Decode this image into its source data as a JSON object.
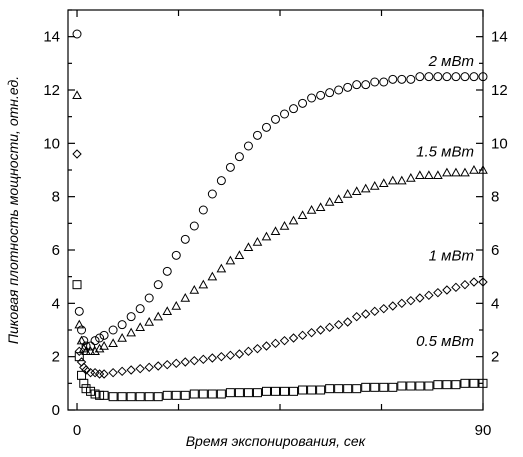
{
  "chart_data": {
    "type": "scatter",
    "xlabel": "Время экспонирования, сек",
    "ylabel": "Пиковая плотность мощности, отн.ед.",
    "xlim": [
      -2,
      90
    ],
    "ylim": [
      0,
      15
    ],
    "x_ticks": [
      0,
      90
    ],
    "y_ticks": [
      0,
      2,
      4,
      6,
      8,
      10,
      12,
      14
    ],
    "y_ticks_right": [
      2,
      4,
      6,
      8,
      10,
      12,
      14
    ],
    "grid": false,
    "series": [
      {
        "name": "2 мВт",
        "marker": "circle",
        "x": [
          0,
          0.5,
          1,
          1.5,
          2,
          3,
          4,
          5,
          6,
          8,
          10,
          12,
          14,
          16,
          18,
          20,
          22,
          24,
          26,
          28,
          30,
          32,
          34,
          36,
          38,
          40,
          42,
          44,
          46,
          48,
          50,
          52,
          54,
          56,
          58,
          60,
          62,
          64,
          66,
          68,
          70,
          72,
          74,
          76,
          78,
          80,
          82,
          84,
          86,
          88,
          90
        ],
        "values": [
          14.1,
          3.7,
          3.0,
          2.6,
          2.4,
          2.4,
          2.6,
          2.7,
          2.8,
          3.0,
          3.2,
          3.5,
          3.8,
          4.2,
          4.7,
          5.2,
          5.8,
          6.4,
          6.9,
          7.5,
          8.1,
          8.6,
          9.1,
          9.5,
          9.9,
          10.3,
          10.6,
          10.9,
          11.1,
          11.3,
          11.5,
          11.7,
          11.8,
          11.9,
          12.0,
          12.1,
          12.2,
          12.2,
          12.3,
          12.3,
          12.4,
          12.4,
          12.4,
          12.5,
          12.5,
          12.5,
          12.5,
          12.5,
          12.5,
          12.5,
          12.5
        ]
      },
      {
        "name": "1.5 мВт",
        "marker": "triangle",
        "x": [
          0,
          0.5,
          1,
          1.5,
          2,
          3,
          4,
          5,
          6,
          8,
          10,
          12,
          14,
          16,
          18,
          20,
          22,
          24,
          26,
          28,
          30,
          32,
          34,
          36,
          38,
          40,
          42,
          44,
          46,
          48,
          50,
          52,
          54,
          56,
          58,
          60,
          62,
          64,
          66,
          68,
          70,
          72,
          74,
          76,
          78,
          80,
          82,
          84,
          86,
          88,
          90
        ],
        "values": [
          11.8,
          3.2,
          2.6,
          2.3,
          2.2,
          2.2,
          2.2,
          2.3,
          2.4,
          2.5,
          2.7,
          2.9,
          3.1,
          3.3,
          3.5,
          3.7,
          3.9,
          4.2,
          4.5,
          4.7,
          5.0,
          5.3,
          5.6,
          5.8,
          6.1,
          6.3,
          6.5,
          6.7,
          6.9,
          7.1,
          7.3,
          7.5,
          7.6,
          7.8,
          7.9,
          8.1,
          8.2,
          8.3,
          8.4,
          8.5,
          8.6,
          8.6,
          8.7,
          8.8,
          8.8,
          8.8,
          8.9,
          8.9,
          8.9,
          9.0,
          9.0
        ]
      },
      {
        "name": "1 мВт",
        "marker": "diamond",
        "x": [
          0,
          0.5,
          1,
          1.5,
          2,
          3,
          4,
          5,
          6,
          8,
          10,
          12,
          14,
          16,
          18,
          20,
          22,
          24,
          26,
          28,
          30,
          32,
          34,
          36,
          38,
          40,
          42,
          44,
          46,
          48,
          50,
          52,
          54,
          56,
          58,
          60,
          62,
          64,
          66,
          68,
          70,
          72,
          74,
          76,
          78,
          80,
          82,
          84,
          86,
          88,
          90
        ],
        "values": [
          9.6,
          2.2,
          1.8,
          1.6,
          1.5,
          1.4,
          1.4,
          1.35,
          1.35,
          1.4,
          1.45,
          1.5,
          1.55,
          1.6,
          1.65,
          1.7,
          1.75,
          1.8,
          1.85,
          1.9,
          1.95,
          2.0,
          2.05,
          2.1,
          2.2,
          2.3,
          2.4,
          2.5,
          2.6,
          2.7,
          2.8,
          2.9,
          3.0,
          3.1,
          3.2,
          3.3,
          3.5,
          3.6,
          3.7,
          3.8,
          3.9,
          4.0,
          4.1,
          4.2,
          4.3,
          4.4,
          4.5,
          4.6,
          4.7,
          4.8,
          4.8
        ]
      },
      {
        "name": "0.5 мВт",
        "marker": "square",
        "x": [
          0,
          0.5,
          1,
          1.5,
          2,
          3,
          4,
          5,
          6,
          8,
          10,
          12,
          14,
          16,
          18,
          20,
          22,
          24,
          26,
          28,
          30,
          32,
          34,
          36,
          38,
          40,
          42,
          44,
          46,
          48,
          50,
          52,
          54,
          56,
          58,
          60,
          62,
          64,
          66,
          68,
          70,
          72,
          74,
          76,
          78,
          80,
          82,
          84,
          86,
          88,
          90
        ],
        "values": [
          4.7,
          2.0,
          1.3,
          1.0,
          0.8,
          0.7,
          0.6,
          0.55,
          0.55,
          0.5,
          0.5,
          0.5,
          0.5,
          0.5,
          0.5,
          0.55,
          0.55,
          0.55,
          0.6,
          0.6,
          0.6,
          0.6,
          0.65,
          0.65,
          0.65,
          0.65,
          0.7,
          0.7,
          0.7,
          0.7,
          0.75,
          0.75,
          0.75,
          0.8,
          0.8,
          0.8,
          0.8,
          0.85,
          0.85,
          0.85,
          0.85,
          0.9,
          0.9,
          0.9,
          0.9,
          0.95,
          0.95,
          0.95,
          1.0,
          1.0,
          1.0
        ]
      }
    ]
  }
}
